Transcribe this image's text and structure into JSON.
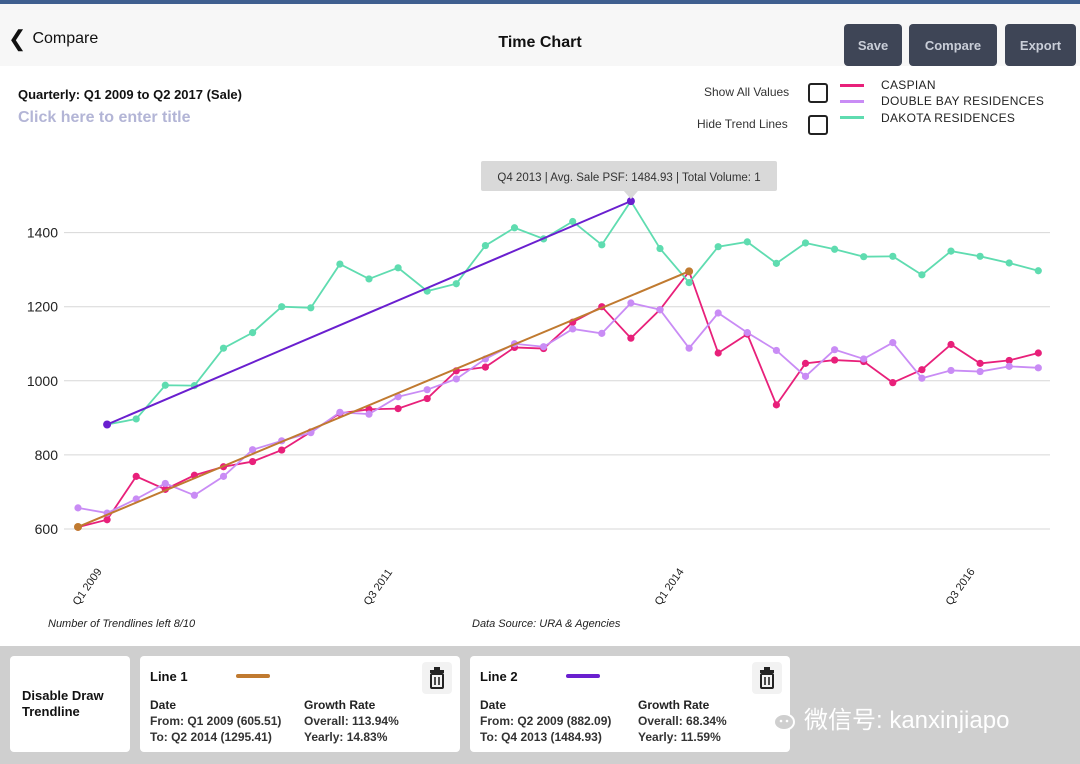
{
  "header": {
    "back_label": "Compare",
    "title": "Time Chart",
    "buttons": {
      "save": "Save",
      "compare": "Compare",
      "export": "Export"
    }
  },
  "chart_header": {
    "subtitle": "Quarterly: Q1 2009 to Q2 2017 (Sale)",
    "title_placeholder": "Click here to enter title"
  },
  "options": {
    "show_all_values": "Show All Values",
    "hide_trend_lines": "Hide Trend Lines"
  },
  "tooltip": "Q4 2013 | Avg. Sale PSF: 1484.93 | Total Volume: 1",
  "footer": {
    "trendlines_left": "Number of Trendlines left 8/10",
    "data_source": "Data Source: URA & Agencies"
  },
  "panel": {
    "disable_label": "Disable Draw Trendline",
    "lines": [
      {
        "name": "Line 1",
        "color": "#c07a30",
        "date_header": "Date",
        "from": "From: Q1 2009 (605.51)",
        "to": "To: Q2 2014 (1295.41)",
        "growth_header": "Growth Rate",
        "overall": "Overall: 113.94%",
        "yearly": "Yearly: 14.83%"
      },
      {
        "name": "Line 2",
        "color": "#6a1fcf",
        "date_header": "Date",
        "from": "From: Q2 2009 (882.09)",
        "to": "To: Q4 2013 (1484.93)",
        "growth_header": "Growth Rate",
        "overall": "Overall: 68.34%",
        "yearly": "Yearly: 11.59%"
      }
    ]
  },
  "watermark": "微信号: kanxinjiapo",
  "chart_data": {
    "type": "line",
    "quarters_count": 34,
    "x_start": "Q1 2009",
    "ylim": [
      600,
      1500
    ],
    "yticks": [
      600,
      800,
      1000,
      1200,
      1400
    ],
    "xticks": [
      {
        "label": "Q1 2009",
        "index": 0
      },
      {
        "label": "Q3 2011",
        "index": 10
      },
      {
        "label": "Q1 2014",
        "index": 20
      },
      {
        "label": "Q3 2016",
        "index": 30
      }
    ],
    "grid": true,
    "legend_position": "top-right",
    "series": [
      {
        "name": "CASPIAN",
        "color": "#e8207a",
        "values": [
          605,
          625,
          742,
          707,
          745,
          768,
          782,
          813,
          862,
          912,
          923,
          925,
          952,
          1027,
          1037,
          1090,
          1087,
          1158,
          1200,
          1115,
          1192,
          1295,
          1075,
          1126,
          935,
          1047,
          1056,
          1052,
          995,
          1030,
          1098,
          1047,
          1055,
          1075
        ]
      },
      {
        "name": "DOUBLE BAY RESIDENCES",
        "color": "#c98cf5",
        "values": [
          657,
          643,
          681,
          723,
          691,
          742,
          814,
          838,
          860,
          915,
          910,
          957,
          976,
          1005,
          1059,
          1100,
          1092,
          1140,
          1128,
          1210,
          1192,
          1088,
          1183,
          1130,
          1082,
          1012,
          1084,
          1059,
          1103,
          1007,
          1028,
          1025,
          1039,
          1035
        ]
      },
      {
        "name": "DAKOTA RESIDENCES",
        "color": "#5fdcb0",
        "values": [
          null,
          882,
          897,
          988,
          987,
          1088,
          1130,
          1200,
          1197,
          1315,
          1275,
          1305,
          1242,
          1262,
          1365,
          1413,
          1383,
          1430,
          1367,
          1485,
          1357,
          1265,
          1362,
          1375,
          1317,
          1372,
          1355,
          1335,
          1336,
          1286,
          1350,
          1336,
          1318,
          1297
        ]
      }
    ],
    "trendlines": [
      {
        "name": "Line 1",
        "color": "#c07a30",
        "from_index": 0,
        "from_value": 605.51,
        "to_index": 21,
        "to_value": 1295.41
      },
      {
        "name": "Line 2",
        "color": "#6a1fcf",
        "from_index": 1,
        "from_value": 882.09,
        "to_index": 19,
        "to_value": 1484.93
      }
    ]
  }
}
